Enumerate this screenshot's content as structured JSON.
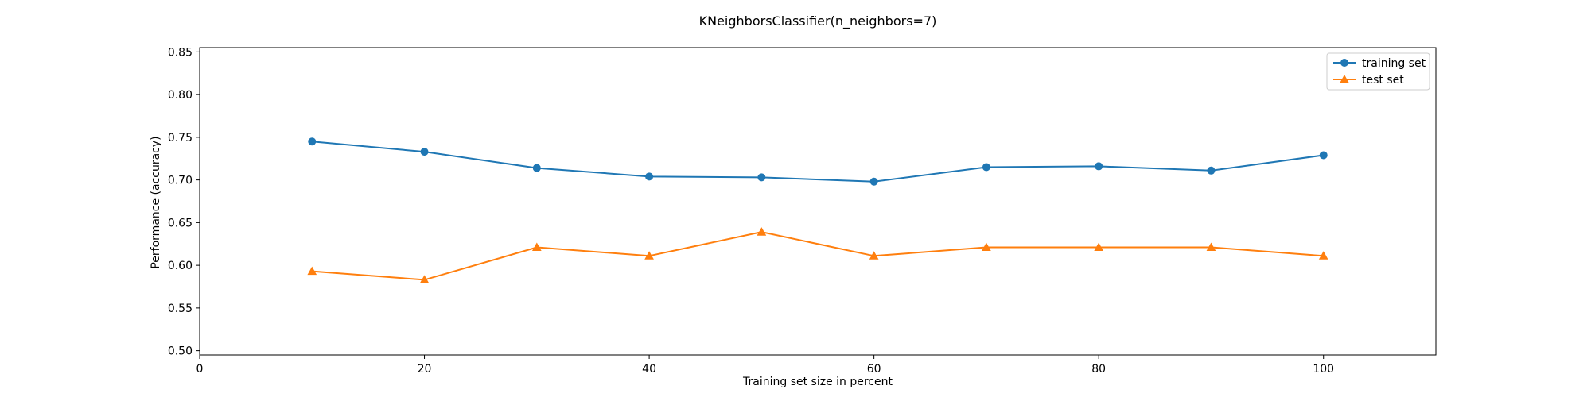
{
  "chart_data": {
    "type": "line",
    "title": "KNeighborsClassifier(n_neighbors=7)",
    "xlabel": "Training set size in percent",
    "ylabel": "Performance (accuracy)",
    "xlim": [
      0,
      110
    ],
    "ylim": [
      0.495,
      0.855
    ],
    "xticks": [
      0,
      20,
      40,
      60,
      80,
      100
    ],
    "yticks": [
      0.5,
      0.55,
      0.6,
      0.65,
      0.7,
      0.75,
      0.8,
      0.85
    ],
    "x": [
      10,
      20,
      30,
      40,
      50,
      60,
      70,
      80,
      90,
      100
    ],
    "series": [
      {
        "name": "training set",
        "marker": "circle",
        "color": "#1f77b4",
        "values": [
          0.745,
          0.733,
          0.714,
          0.704,
          0.703,
          0.698,
          0.715,
          0.716,
          0.711,
          0.729
        ]
      },
      {
        "name": "test set",
        "marker": "triangle",
        "color": "#ff7f0e",
        "values": [
          0.593,
          0.583,
          0.621,
          0.611,
          0.639,
          0.611,
          0.621,
          0.621,
          0.621,
          0.611
        ]
      }
    ],
    "grid": false,
    "legend_position": "top-right"
  }
}
